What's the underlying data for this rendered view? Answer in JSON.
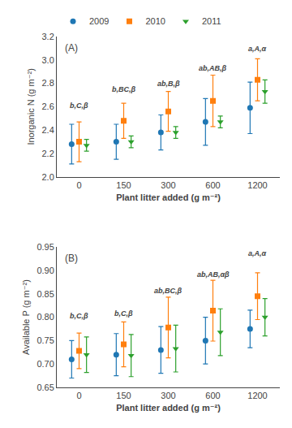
{
  "chart_data": [
    {
      "type": "scatter",
      "title": "(A)",
      "x_label": "Plant litter added (g m⁻²)",
      "y_label": "Inorganic N (g m⁻²)",
      "categories": [
        "0",
        "150",
        "300",
        "600",
        "1200"
      ],
      "ylim": [
        2.0,
        3.2
      ],
      "yticks": [
        {
          "value": 2.0,
          "label": "2.0"
        },
        2.2,
        2.4,
        2.6,
        2.8,
        {
          "value": 3.0,
          "label": "3.0"
        },
        3.2
      ],
      "grid": false,
      "legend": "upper left",
      "series": [
        {
          "name": "2009",
          "marker": "circle",
          "values": [
            2.28,
            2.3,
            2.38,
            2.47,
            2.59
          ],
          "errors": [
            0.17,
            0.15,
            0.15,
            0.2,
            0.22
          ]
        },
        {
          "name": "2010",
          "marker": "square",
          "values": [
            2.3,
            2.48,
            2.56,
            2.65,
            2.83
          ],
          "errors": [
            0.17,
            0.15,
            0.17,
            0.22,
            0.18
          ]
        },
        {
          "name": "2011",
          "marker": "triangle-down",
          "values": [
            2.27,
            2.3,
            2.38,
            2.47,
            2.73
          ],
          "errors": [
            0.05,
            0.05,
            0.05,
            0.05,
            0.1
          ]
        }
      ],
      "annotations": [
        {
          "text": "b,C,β",
          "x": "0",
          "y": 2.56
        },
        {
          "text": "b,BC,β",
          "x": "150",
          "y": 2.7
        },
        {
          "text": "ab,B,β",
          "x": "300",
          "y": 2.75
        },
        {
          "text": "ab,AB,β",
          "x": "600",
          "y": 2.88
        },
        {
          "text": "a,A,α",
          "x": "1200",
          "y": 3.05
        }
      ]
    },
    {
      "type": "scatter",
      "title": "(B)",
      "x_label": "Plant litter added (g m⁻²)",
      "y_label": "Available P (g m⁻²)",
      "categories": [
        "0",
        "150",
        "300",
        "600",
        "1200"
      ],
      "ylim": [
        0.65,
        0.95
      ],
      "yticks": [
        0.65,
        {
          "value": 0.7,
          "label": "0.70"
        },
        0.75,
        {
          "value": 0.8,
          "label": "0.80"
        },
        0.85,
        {
          "value": 0.9,
          "label": "0.90"
        },
        0.95
      ],
      "grid": false,
      "series": [
        {
          "name": "2009",
          "marker": "circle",
          "values": [
            0.71,
            0.72,
            0.73,
            0.75,
            0.775
          ],
          "errors": [
            0.04,
            0.045,
            0.05,
            0.05,
            0.04
          ]
        },
        {
          "name": "2010",
          "marker": "square",
          "values": [
            0.728,
            0.742,
            0.778,
            0.814,
            0.845
          ],
          "errors": [
            0.038,
            0.048,
            0.065,
            0.065,
            0.05
          ]
        },
        {
          "name": "2011",
          "marker": "triangle-down",
          "values": [
            0.72,
            0.718,
            0.733,
            0.768,
            0.8
          ],
          "errors": [
            0.038,
            0.045,
            0.05,
            0.05,
            0.04
          ]
        }
      ],
      "annotations": [
        {
          "text": "b,C,β",
          "x": "0",
          "y": 0.79
        },
        {
          "text": "b,C,β",
          "x": "150",
          "y": 0.795
        },
        {
          "text": "ab,BC,β",
          "x": "300",
          "y": 0.845
        },
        {
          "text": "ab,AB,αβ",
          "x": "600",
          "y": 0.88
        },
        {
          "text": "a,A,α",
          "x": "1200",
          "y": 0.925
        }
      ]
    }
  ]
}
